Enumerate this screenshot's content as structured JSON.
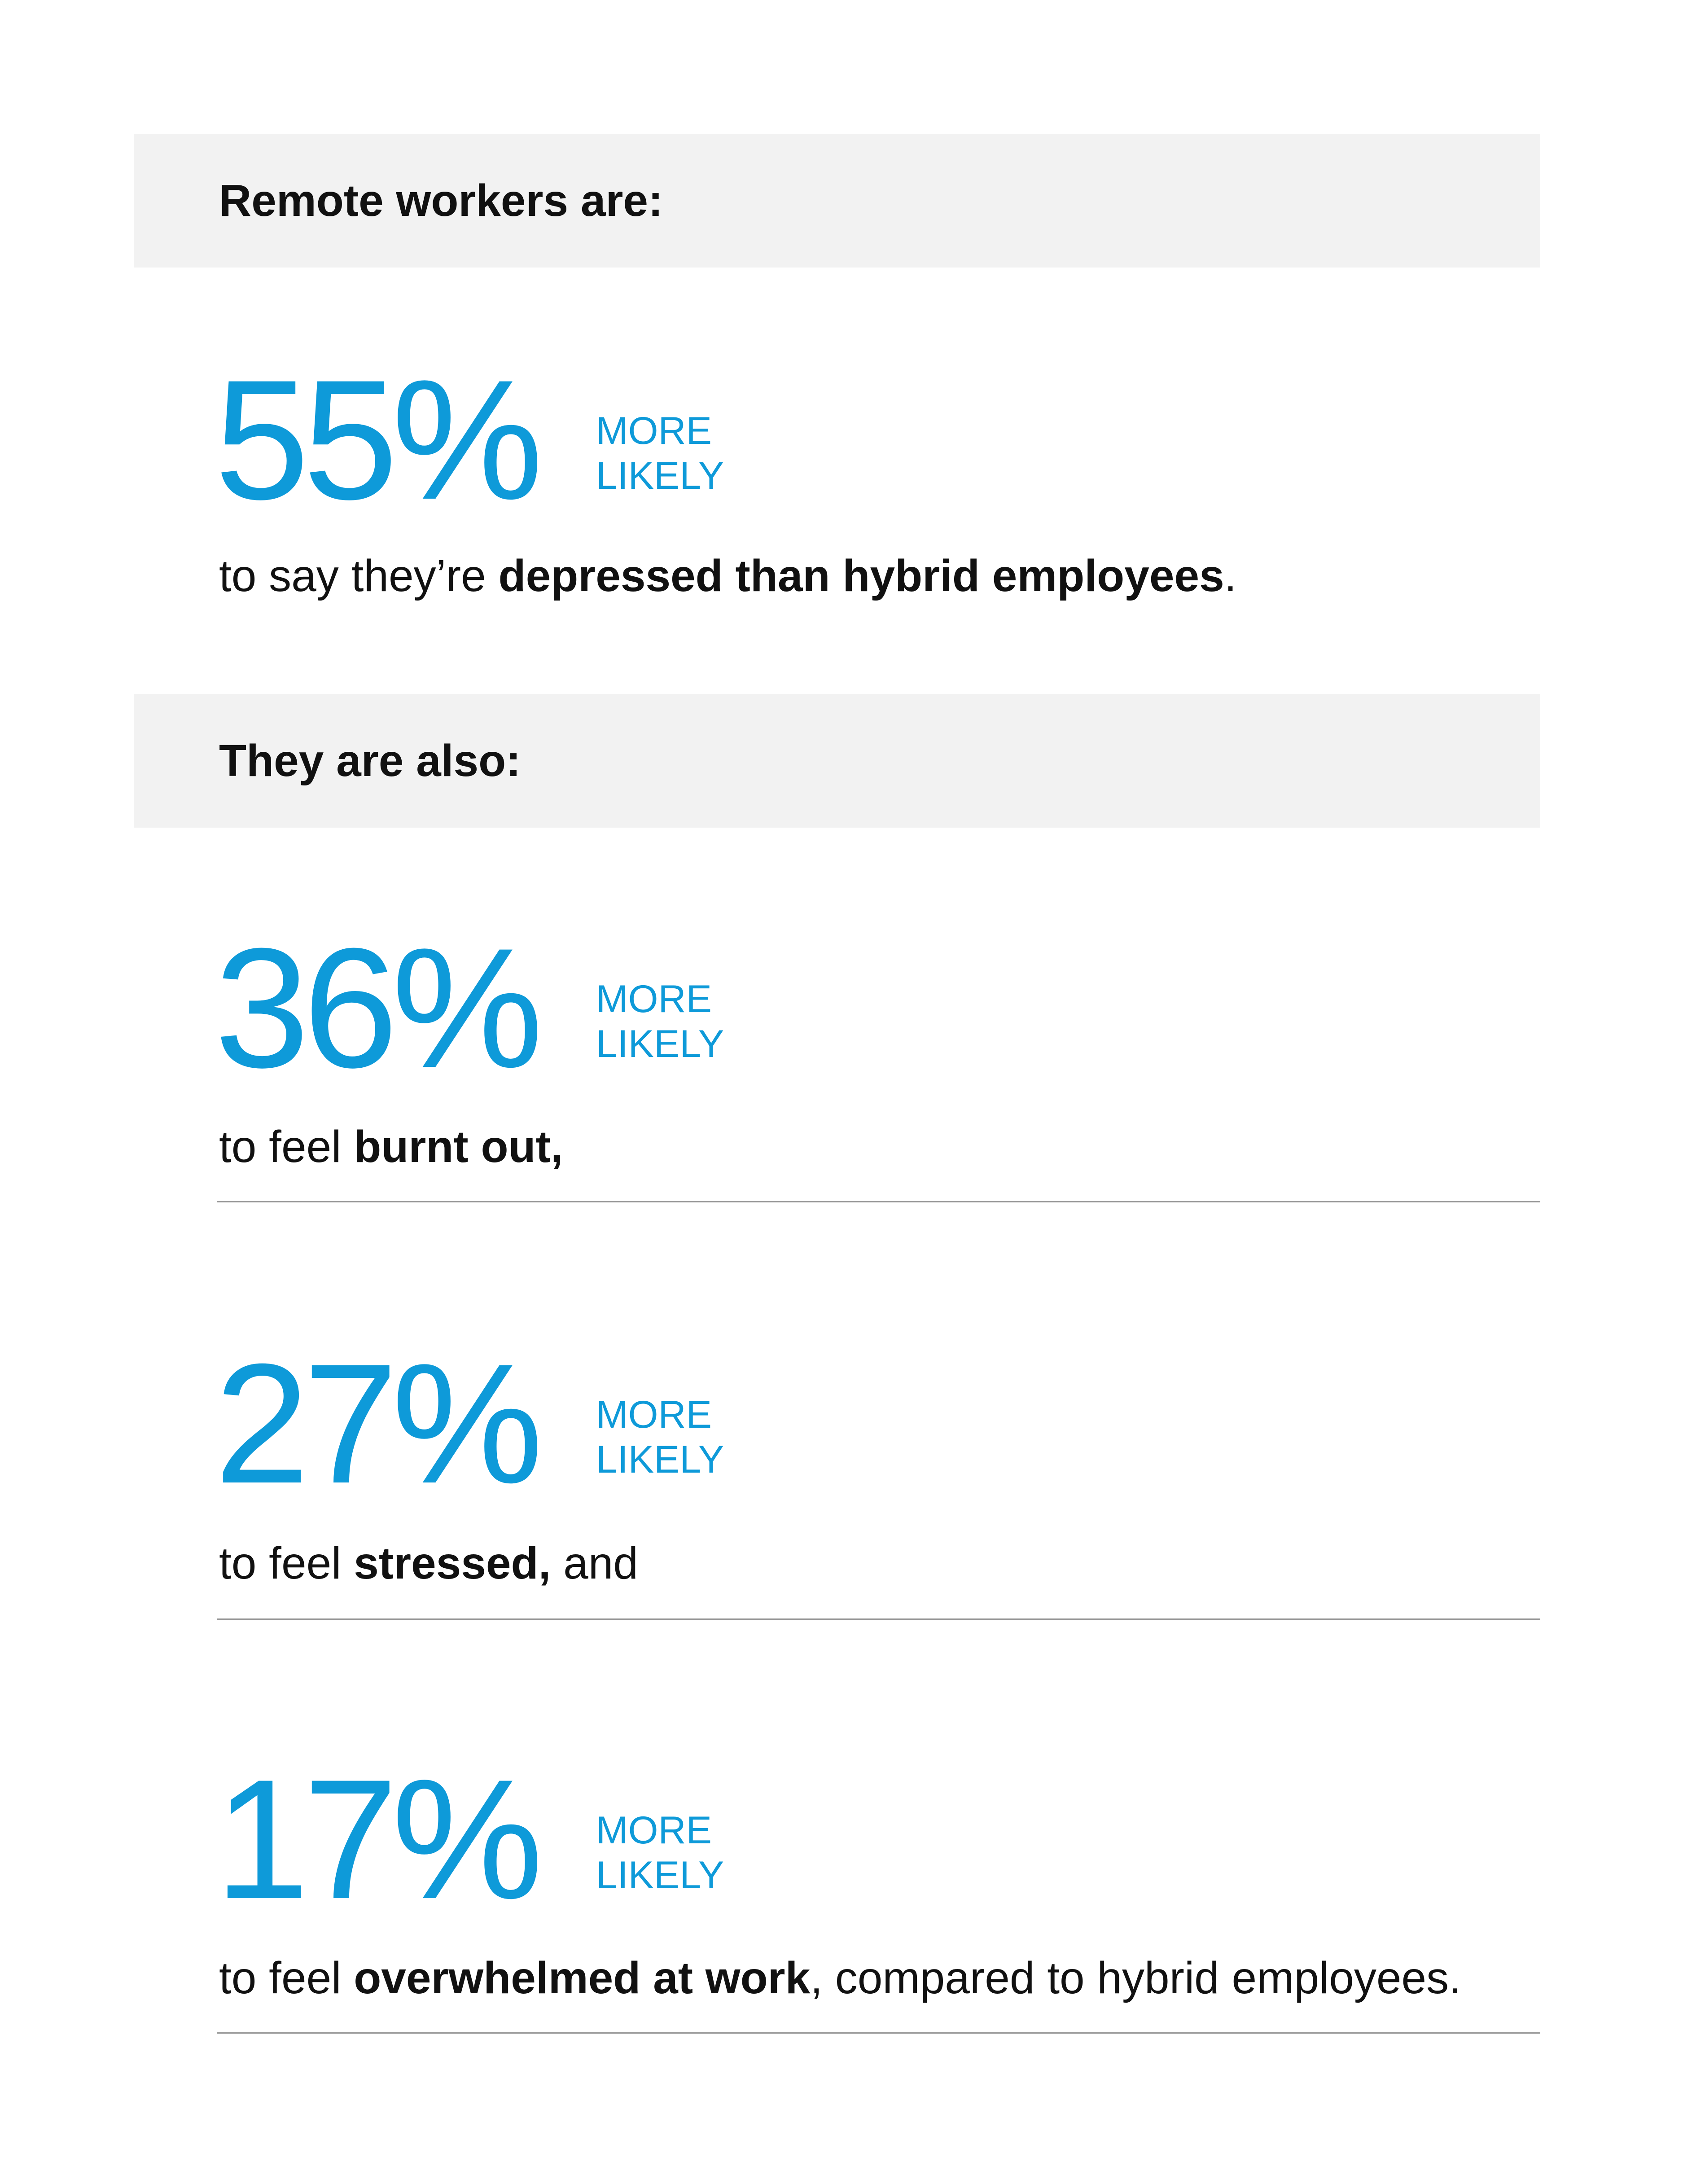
{
  "section1": {
    "title": "Remote workers are:",
    "stat": {
      "percent": "55%",
      "more": "MORE",
      "likely": "LIKELY",
      "desc_pre": "to say they’re ",
      "desc_bold": "depressed than hybrid employees",
      "desc_post": "."
    }
  },
  "section2": {
    "title": "They are also:",
    "stats": [
      {
        "percent": "36%",
        "more": "MORE",
        "likely": "LIKELY",
        "desc_pre": "to feel ",
        "desc_bold": "burnt out,",
        "desc_post": ""
      },
      {
        "percent": "27%",
        "more": "MORE",
        "likely": "LIKELY",
        "desc_pre": "to feel ",
        "desc_bold": "stressed,",
        "desc_post": " and"
      },
      {
        "percent": "17%",
        "more": "MORE",
        "likely": "LIKELY",
        "desc_pre": "to feel ",
        "desc_bold": "overwhelmed at work",
        "desc_post": ", compared to hybrid employees."
      }
    ]
  },
  "colors": {
    "accent": "#0e9ad9",
    "band": "#f2f2f2",
    "text": "#111111",
    "rule": "#9a9a9a"
  }
}
